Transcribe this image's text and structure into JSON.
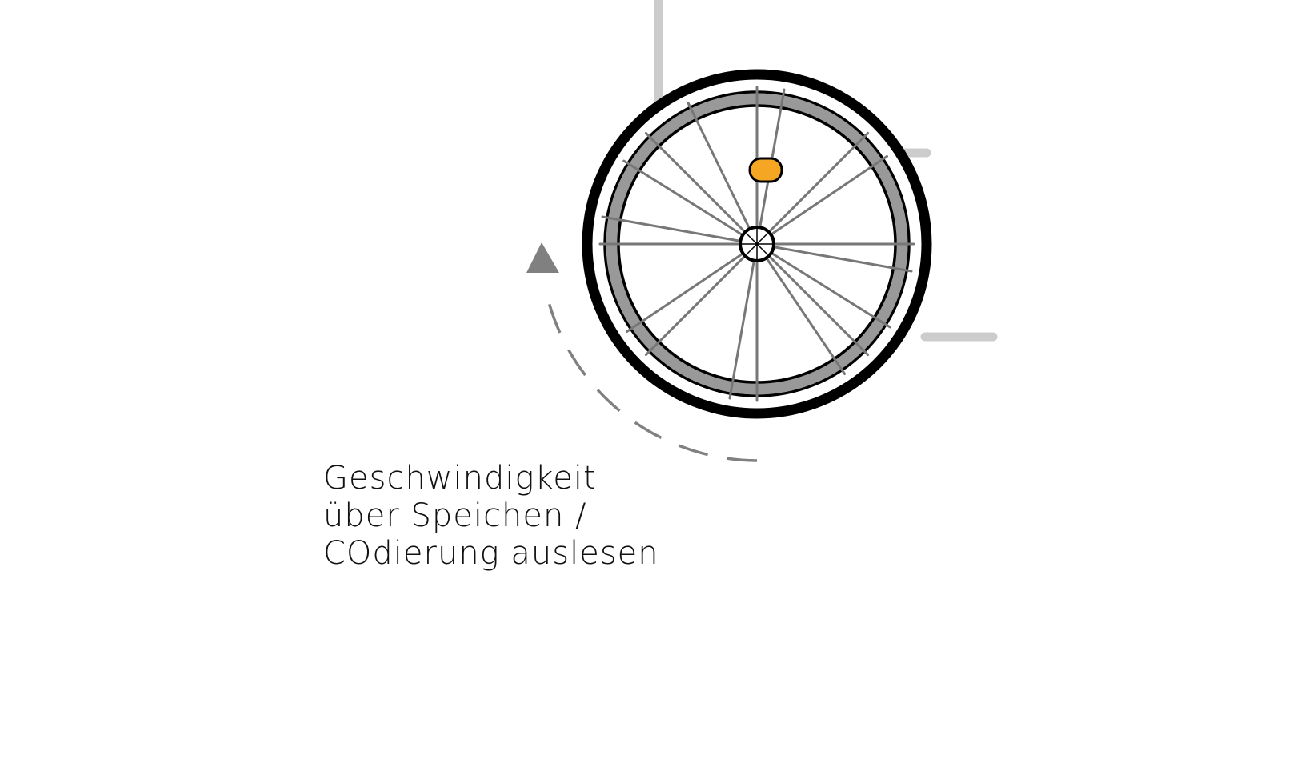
{
  "caption": {
    "lines": [
      "Geschwindigkeit",
      "über Speichen /",
      "COdierung auslesen"
    ]
  },
  "colors": {
    "frame": "#cccccc",
    "tire": "#000000",
    "rim": "#999999",
    "spoke": "#777777",
    "sensor": "#f5a623",
    "arrow": "#808080"
  },
  "icons": {
    "rotation-arrow": "dashed-curved-arrow",
    "sensor": "orange-rounded-rect"
  }
}
